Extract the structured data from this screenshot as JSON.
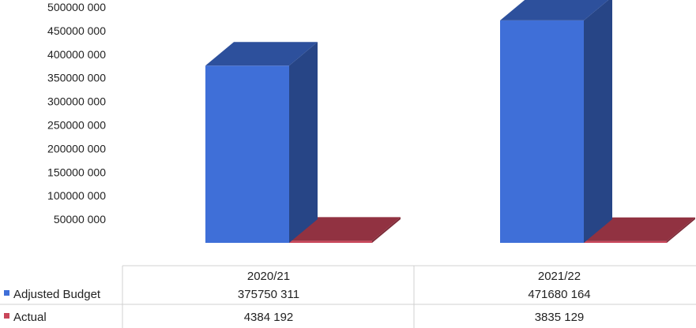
{
  "chart_data": {
    "type": "bar",
    "style": "3d-clustered-column",
    "categories": [
      "2020/21",
      "2021/22"
    ],
    "series": [
      {
        "name": "Adjusted Budget",
        "values": [
          375750311,
          471680164
        ],
        "value_labels": [
          "375750 311",
          "471680 164"
        ],
        "color": "#3f6fd8"
      },
      {
        "name": "Actual",
        "values": [
          4384192,
          3835129
        ],
        "value_labels": [
          "4384 192",
          "3835 129"
        ],
        "color": "#c9465a"
      }
    ],
    "y_ticks": [
      "50000 000",
      "100000 000",
      "150000 000",
      "200000 000",
      "250000 000",
      "300000 000",
      "350000 000",
      "400000 000",
      "450000 000",
      "500000 000"
    ],
    "ylim": [
      0,
      500000000
    ],
    "grid": false,
    "legend": "data-table-left"
  }
}
